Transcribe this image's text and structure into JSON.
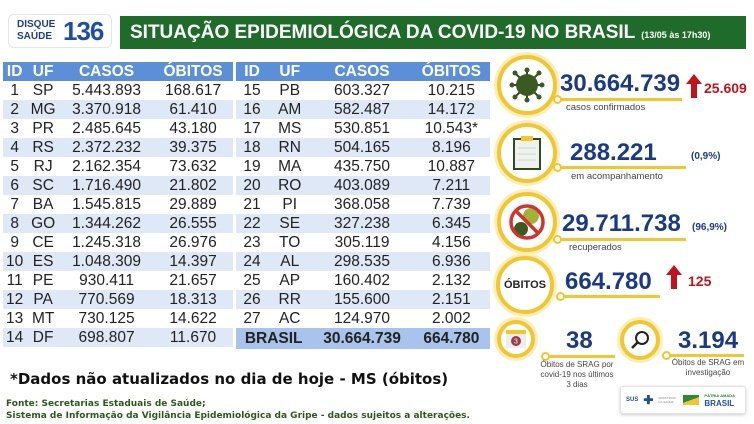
{
  "header": {
    "logo_top": "DISQUE",
    "logo_bottom": "SAÚDE",
    "logo_number": "136",
    "title": "SITUAÇÃO EPIDEMIOLÓGICA DA COVID-19 NO BRASIL",
    "timestamp": "(13/05 às 17h30)"
  },
  "table": {
    "columns": [
      "ID",
      "UF",
      "CASOS",
      "ÓBITOS"
    ],
    "rows_left": [
      [
        "1",
        "SP",
        "5.443.893",
        "168.617"
      ],
      [
        "2",
        "MG",
        "3.370.918",
        "61.410"
      ],
      [
        "3",
        "PR",
        "2.485.645",
        "43.180"
      ],
      [
        "4",
        "RS",
        "2.372.232",
        "39.375"
      ],
      [
        "5",
        "RJ",
        "2.162.354",
        "73.632"
      ],
      [
        "6",
        "SC",
        "1.716.490",
        "21.802"
      ],
      [
        "7",
        "BA",
        "1.545.815",
        "29.889"
      ],
      [
        "8",
        "GO",
        "1.344.262",
        "26.555"
      ],
      [
        "9",
        "CE",
        "1.245.318",
        "26.976"
      ],
      [
        "10",
        "ES",
        "1.048.309",
        "14.397"
      ],
      [
        "11",
        "PE",
        "930.411",
        "21.657"
      ],
      [
        "12",
        "PA",
        "770.569",
        "18.313"
      ],
      [
        "13",
        "MT",
        "730.125",
        "14.622"
      ],
      [
        "14",
        "DF",
        "698.807",
        "11.670"
      ]
    ],
    "rows_right": [
      [
        "15",
        "PB",
        "603.327",
        "10.215"
      ],
      [
        "16",
        "AM",
        "582.487",
        "14.172"
      ],
      [
        "17",
        "MS",
        "530.851",
        "10.543*"
      ],
      [
        "18",
        "RN",
        "504.165",
        "8.196"
      ],
      [
        "19",
        "MA",
        "435.750",
        "10.887"
      ],
      [
        "20",
        "RO",
        "403.089",
        "7.211"
      ],
      [
        "21",
        "PI",
        "368.058",
        "7.739"
      ],
      [
        "22",
        "SE",
        "327.238",
        "6.345"
      ],
      [
        "23",
        "TO",
        "305.119",
        "4.156"
      ],
      [
        "24",
        "AL",
        "298.535",
        "6.936"
      ],
      [
        "25",
        "AP",
        "160.402",
        "2.132"
      ],
      [
        "26",
        "RR",
        "155.600",
        "2.151"
      ],
      [
        "27",
        "AC",
        "124.970",
        "2.002"
      ]
    ],
    "total": {
      "label": "BRASIL",
      "casos": "30.664.739",
      "obitos": "664.780"
    }
  },
  "stats": {
    "confirmed": {
      "value": "30.664.739",
      "label": "casos confirmados",
      "increase": "25.609",
      "icon": "virus-icon"
    },
    "monitoring": {
      "value": "288.221",
      "label": "em acompanhamento",
      "percent": "(0,9%)",
      "icon": "clipboard-icon"
    },
    "recovered": {
      "value": "29.711.738",
      "label": "recuperados",
      "percent": "(96,9%)",
      "icon": "no-virus-icon"
    },
    "deaths": {
      "badge": "ÓBITOS",
      "value": "664.780",
      "increase": "125"
    },
    "srag_recent": {
      "value": "38",
      "label": "Óbitos de SRAG por covid-19 nos últimos 3 dias",
      "calendar_number": "3"
    },
    "srag_investigation": {
      "value": "3.194",
      "label": "Óbitos de SRAG em investigação"
    }
  },
  "footnote": "*Dados não atualizados no dia de hoje - MS (óbitos)",
  "source_line1": "Fonte: Secretarias Estaduais de Saúde;",
  "source_line2": "Sistema de Informação da Vigilância Epidemiológica da Gripe - dados sujeitos a alterações.",
  "logos": {
    "sus": "SUS",
    "ministry": "MINISTÉRIO DA SAÚDE",
    "gov_top": "PÁTRIA AMADA",
    "gov": "BRASIL"
  },
  "colors": {
    "banner": "#1e6b2a",
    "table_header": "#5b8fd8",
    "accent_yellow": "#f2c62f",
    "number_navy": "#1a3a86",
    "increase_red": "#c0141c"
  }
}
